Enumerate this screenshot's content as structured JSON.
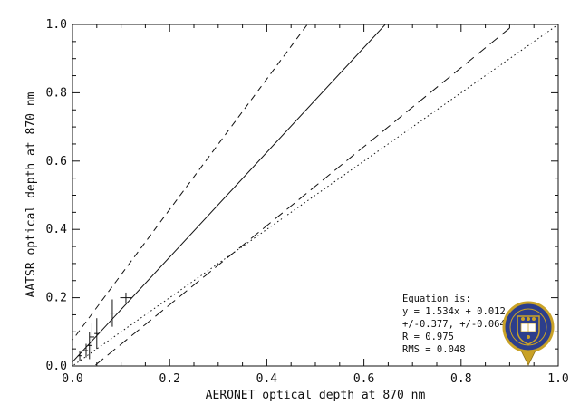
{
  "chart_data": {
    "type": "scatter",
    "xlabel": "AERONET optical depth at 870 nm",
    "ylabel": "AATSR optical depth at 870 nm",
    "xlim": [
      0.0,
      1.0
    ],
    "ylim": [
      0.0,
      1.0
    ],
    "x_ticks": [
      "0.0",
      "0.2",
      "0.4",
      "0.6",
      "0.8",
      "1.0"
    ],
    "y_ticks": [
      "0.0",
      "0.2",
      "0.4",
      "0.6",
      "0.8",
      "1.0"
    ],
    "grid": false,
    "points": [
      {
        "x": 0.015,
        "y": 0.03,
        "xerr": 0.004,
        "yerr": 0.015
      },
      {
        "x": 0.028,
        "y": 0.045,
        "xerr": 0.004,
        "yerr": 0.02
      },
      {
        "x": 0.035,
        "y": 0.06,
        "xerr": 0.004,
        "yerr": 0.04
      },
      {
        "x": 0.04,
        "y": 0.085,
        "xerr": 0.005,
        "yerr": 0.04
      },
      {
        "x": 0.05,
        "y": 0.095,
        "xerr": 0.005,
        "yerr": 0.045
      },
      {
        "x": 0.082,
        "y": 0.155,
        "xerr": 0.005,
        "yerr": 0.04
      },
      {
        "x": 0.11,
        "y": 0.2,
        "xerr": 0.012,
        "yerr": 0.015
      }
    ],
    "lines": [
      {
        "style": "solid",
        "slope": 1.534,
        "intercept": 0.012
      },
      {
        "style": "short-dash",
        "slope": 1.911,
        "intercept": 0.076
      },
      {
        "style": "long-dash",
        "slope": 1.157,
        "intercept": -0.052
      },
      {
        "style": "dotted",
        "slope": 1.0,
        "intercept": 0.0
      }
    ],
    "annotation": [
      "Equation is:",
      "y = 1.534x + 0.012",
      "+/-0.377, +/-0.064",
      "R = 0.975",
      "RMS = 0.048"
    ]
  },
  "logo": {
    "name": "university-crest-icon",
    "colors": [
      "#2c3e8c",
      "#c9a227",
      "#ffffff"
    ]
  }
}
